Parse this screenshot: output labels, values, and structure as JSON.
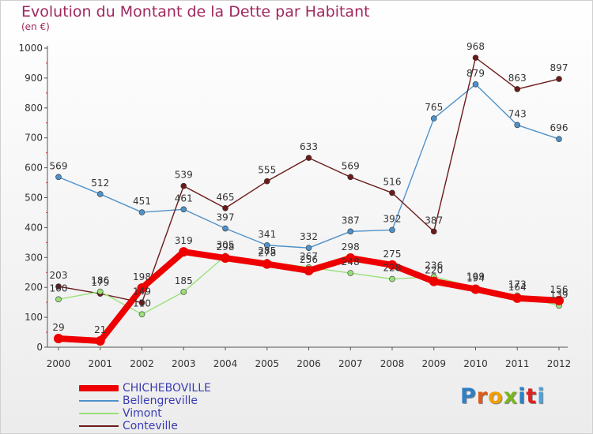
{
  "header": {
    "title": "Evolution du Montant de la Dette par Habitant",
    "subtitle": "(en €)"
  },
  "logo": {
    "text": "Proxiti",
    "colors": [
      "#2e7fc4",
      "#e05a1a",
      "#f0a000",
      "#7ab61e",
      "#2e7fc4",
      "#d22",
      "#4aa3df"
    ]
  },
  "chart_data": {
    "type": "line",
    "title": "Evolution du Montant de la Dette par Habitant",
    "ylabel": "(en €)",
    "x": [
      "2000",
      "2001",
      "2002",
      "2003",
      "2004",
      "2005",
      "2006",
      "2007",
      "2008",
      "2009",
      "2010",
      "2011",
      "2012"
    ],
    "ylim": [
      0,
      1000
    ],
    "yticks": [
      "0",
      "100",
      "200",
      "300",
      "400",
      "500",
      "600",
      "700",
      "800",
      "900",
      "1000"
    ],
    "grid": false,
    "legend_position": "bottom-left",
    "series": [
      {
        "name": "CHICHEBOVILLE",
        "color": "#ee0000",
        "values": [
          29,
          21,
          198,
          319,
          298,
          278,
          256,
          298,
          275,
          220,
          194,
          164,
          156
        ],
        "labels": [
          "29",
          "21",
          "198",
          "319",
          "298",
          "278",
          "256",
          "298",
          "275",
          "220",
          "194",
          "164",
          "156"
        ]
      },
      {
        "name": "Bellengreville",
        "color": "#4f91c9",
        "values": [
          569,
          512,
          451,
          461,
          397,
          341,
          332,
          387,
          392,
          765,
          879,
          743,
          696
        ],
        "labels": [
          "569",
          "512",
          "451",
          "461",
          "397",
          "341",
          "332",
          "387",
          "392",
          "765",
          "879",
          "743",
          "696"
        ]
      },
      {
        "name": "Vimont",
        "color": "#99e07a",
        "values": [
          160,
          186,
          110,
          185,
          305,
          285,
          267,
          248,
          228,
          236,
          199,
          173,
          139
        ],
        "labels": [
          "160",
          "186",
          "110",
          "185",
          "305",
          "285",
          "267",
          "248",
          "228",
          "236",
          "199",
          "173",
          "139"
        ]
      },
      {
        "name": "Conteville",
        "color": "#6b1a1a",
        "values": [
          203,
          179,
          149,
          539,
          465,
          555,
          633,
          569,
          516,
          387,
          968,
          863,
          897
        ],
        "labels": [
          "203",
          "179",
          "149",
          "539",
          "465",
          "555",
          "633",
          "569",
          "516",
          "387",
          "968",
          "863",
          "897"
        ]
      }
    ]
  }
}
